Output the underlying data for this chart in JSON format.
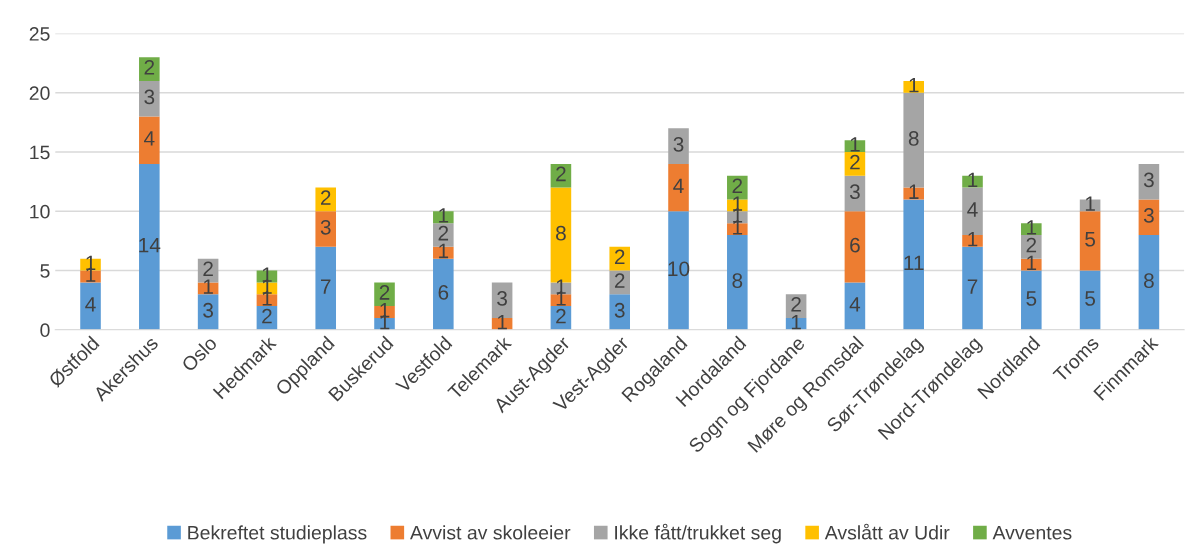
{
  "chart_data": {
    "type": "bar",
    "stacked": true,
    "categories": [
      "Østfold",
      "Akershus",
      "Oslo",
      "Hedmark",
      "Oppland",
      "Buskerud",
      "Vestfold",
      "Telemark",
      "Aust-Agder",
      "Vest-Agder",
      "Rogaland",
      "Hordaland",
      "Sogn og Fjordane",
      "Møre og Romsdal",
      "Sør-Trøndelag",
      "Nord-Trøndelag",
      "Nordland",
      "Troms",
      "Finnmark"
    ],
    "series": [
      {
        "name": "Bekreftet studieplass",
        "color": "#5b9bd5",
        "values": [
          4,
          14,
          3,
          2,
          7,
          1,
          6,
          0,
          2,
          3,
          10,
          8,
          1,
          4,
          11,
          7,
          5,
          5,
          8
        ],
        "value_labels": [
          "4",
          "14",
          "3",
          "2",
          "7",
          "1",
          "6",
          null,
          "2",
          "3",
          "10",
          "8",
          "1",
          "4",
          "11",
          "7",
          "5",
          "5",
          "8"
        ]
      },
      {
        "name": "Avvist av skoleeier",
        "color": "#ed7d31",
        "values": [
          1,
          4,
          1,
          1,
          3,
          1,
          1,
          1,
          1,
          0,
          4,
          1,
          0,
          6,
          1,
          1,
          1,
          5,
          3
        ],
        "value_labels": [
          "1",
          "4",
          "1",
          "1",
          "3",
          "1",
          "1",
          "1",
          "1",
          null,
          "4",
          "1",
          null,
          "6",
          "1",
          "1",
          "1",
          "5",
          "3"
        ]
      },
      {
        "name": "Ikke fått/trukket seg",
        "color": "#a5a5a5",
        "values": [
          0,
          3,
          2,
          0,
          0,
          0,
          2,
          3,
          1,
          2,
          3,
          1,
          2,
          3,
          8,
          4,
          2,
          1,
          3
        ],
        "value_labels": [
          null,
          "3",
          "2",
          null,
          null,
          null,
          "2",
          "3",
          "1",
          "2",
          "3",
          "1",
          "2",
          "3",
          "8",
          "4",
          "2",
          "1",
          "3"
        ]
      },
      {
        "name": "Avslått av Udir",
        "color": "#ffc000",
        "values": [
          1,
          0,
          0,
          1,
          2,
          0,
          0,
          0,
          8,
          2,
          0,
          1,
          0,
          2,
          1,
          0,
          0,
          0,
          0
        ],
        "value_labels": [
          "1",
          null,
          null,
          "1",
          "2",
          null,
          null,
          null,
          "8",
          "2",
          null,
          "1",
          null,
          "2",
          "1",
          null,
          null,
          null,
          null
        ]
      },
      {
        "name": "Avventes",
        "color": "#70ad47",
        "values": [
          0,
          2,
          0,
          1,
          0,
          2,
          1,
          0,
          2,
          0,
          0,
          2,
          0,
          1,
          0,
          1,
          1,
          0,
          0
        ],
        "value_labels": [
          null,
          "2",
          null,
          "1",
          null,
          "2",
          "1",
          null,
          "2",
          null,
          null,
          "2",
          null,
          "1",
          null,
          "1",
          "1",
          null,
          null
        ]
      }
    ],
    "ylim": [
      0,
      25
    ],
    "yticks": [
      0,
      5,
      10,
      15,
      20,
      25
    ],
    "grid": "y",
    "legend": "bottom"
  }
}
